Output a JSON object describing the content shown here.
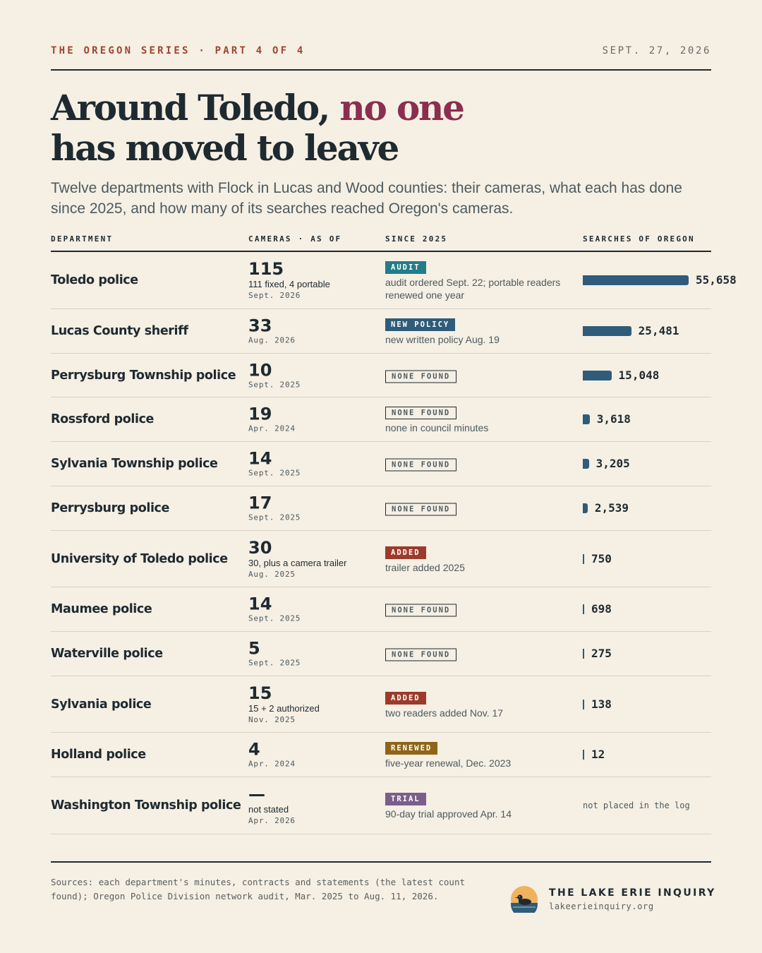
{
  "header": {
    "kicker": "THE OREGON SERIES · PART 4 OF 4",
    "date": "SEPT. 27, 2026"
  },
  "headline": {
    "part1": "Around Toledo, ",
    "accent": "no one",
    "part2": "has moved to leave"
  },
  "dek": "Twelve departments with Flock in Lucas and Wood counties: their cameras, what each has done since 2025, and how many of its searches reached Oregon's cameras.",
  "columns": {
    "department": "DEPARTMENT",
    "cameras": "CAMERAS · AS OF",
    "since": "SINCE 2025",
    "searches": "SEARCHES OF OREGON"
  },
  "colors": {
    "accent": "#8b2e4f",
    "bar": "#2e5c7a",
    "tag_audit": "#237c8a",
    "tag_new_policy": "#2e5c7a",
    "tag_added": "#9c3b2b",
    "tag_renewed": "#8f6418",
    "tag_trial": "#7b5e8c"
  },
  "chart_data": {
    "type": "table",
    "bar_max": 55658,
    "rows": [
      {
        "department": "Toledo police",
        "cameras": "115",
        "camera_note": "111 fixed, 4 portable",
        "as_of": "Sept. 2026",
        "tag": "AUDIT",
        "tag_style": "audit",
        "since_note": "audit ordered Sept. 22; portable readers renewed one year",
        "searches": 55658,
        "searches_label": "55,658"
      },
      {
        "department": "Lucas County sheriff",
        "cameras": "33",
        "camera_note": "",
        "as_of": "Aug. 2026",
        "tag": "NEW POLICY",
        "tag_style": "new_policy",
        "since_note": "new written policy Aug. 19",
        "searches": 25481,
        "searches_label": "25,481"
      },
      {
        "department": "Perrysburg Township police",
        "cameras": "10",
        "camera_note": "",
        "as_of": "Sept. 2025",
        "tag": "NONE FOUND",
        "tag_style": "outline",
        "since_note": "",
        "searches": 15048,
        "searches_label": "15,048"
      },
      {
        "department": "Rossford police",
        "cameras": "19",
        "camera_note": "",
        "as_of": "Apr. 2024",
        "tag": "NONE FOUND",
        "tag_style": "outline",
        "since_note": "none in council minutes",
        "searches": 3618,
        "searches_label": "3,618"
      },
      {
        "department": "Sylvania Township police",
        "cameras": "14",
        "camera_note": "",
        "as_of": "Sept. 2025",
        "tag": "NONE FOUND",
        "tag_style": "outline",
        "since_note": "",
        "searches": 3205,
        "searches_label": "3,205"
      },
      {
        "department": "Perrysburg police",
        "cameras": "17",
        "camera_note": "",
        "as_of": "Sept. 2025",
        "tag": "NONE FOUND",
        "tag_style": "outline",
        "since_note": "",
        "searches": 2539,
        "searches_label": "2,539"
      },
      {
        "department": "University of Toledo police",
        "cameras": "30",
        "camera_note": "30, plus a camera trailer",
        "as_of": "Aug. 2025",
        "tag": "ADDED",
        "tag_style": "added",
        "since_note": "trailer added 2025",
        "searches": 750,
        "searches_label": "750"
      },
      {
        "department": "Maumee police",
        "cameras": "14",
        "camera_note": "",
        "as_of": "Sept. 2025",
        "tag": "NONE FOUND",
        "tag_style": "outline",
        "since_note": "",
        "searches": 698,
        "searches_label": "698"
      },
      {
        "department": "Waterville police",
        "cameras": "5",
        "camera_note": "",
        "as_of": "Sept. 2025",
        "tag": "NONE FOUND",
        "tag_style": "outline",
        "since_note": "",
        "searches": 275,
        "searches_label": "275"
      },
      {
        "department": "Sylvania police",
        "cameras": "15",
        "camera_note": "15 + 2 authorized",
        "as_of": "Nov. 2025",
        "tag": "ADDED",
        "tag_style": "added",
        "since_note": "two readers added Nov. 17",
        "searches": 138,
        "searches_label": "138"
      },
      {
        "department": "Holland police",
        "cameras": "4",
        "camera_note": "",
        "as_of": "Apr. 2024",
        "tag": "RENEWED",
        "tag_style": "renewed",
        "since_note": "five-year renewal, Dec. 2023",
        "searches": 12,
        "searches_label": "12"
      },
      {
        "department": "Washington Township police",
        "cameras": "—",
        "camera_note": "not stated",
        "as_of": "Apr. 2026",
        "tag": "TRIAL",
        "tag_style": "trial",
        "since_note": "90-day trial approved Apr. 14",
        "searches": null,
        "searches_label": "not placed in the log"
      }
    ]
  },
  "footer": {
    "sources": "Sources: each department's minutes, contracts and statements (the latest count found); Oregon Police Division network audit, Mar. 2025 to Aug. 11, 2026.",
    "brand_name": "THE LAKE ERIE INQUIRY",
    "brand_url": "lakeerieinquiry.org",
    "logo_icon": "loon-on-water-logo"
  }
}
